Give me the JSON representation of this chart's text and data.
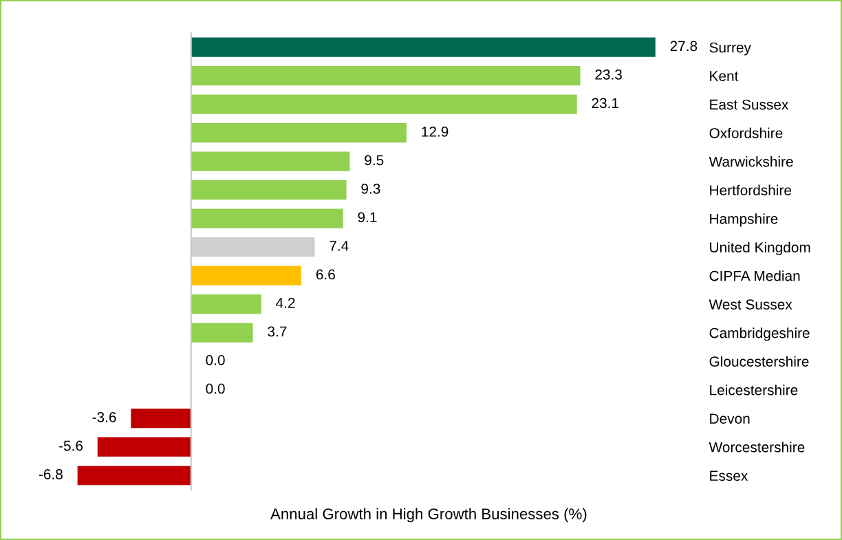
{
  "chart_data": {
    "type": "bar",
    "orientation": "horizontal",
    "xlabel": "Annual Growth in High Growth Businesses (%)",
    "categories": [
      "Surrey",
      "Kent",
      "East Sussex",
      "Oxfordshire",
      "Warwickshire",
      "Hertfordshire",
      "Hampshire",
      "United Kingdom",
      "CIPFA Median",
      "West Sussex",
      "Cambridgeshire",
      "Gloucestershire",
      "Leicestershire",
      "Devon",
      "Worcestershire",
      "Essex"
    ],
    "values": [
      27.8,
      23.3,
      23.1,
      12.9,
      9.5,
      9.3,
      9.1,
      7.4,
      6.6,
      4.2,
      3.7,
      0.0,
      0.0,
      -3.6,
      -5.6,
      -6.8
    ],
    "colors": [
      "#006850",
      "#92d050",
      "#92d050",
      "#92d050",
      "#92d050",
      "#92d050",
      "#92d050",
      "#d0cece",
      "#ffc000",
      "#92d050",
      "#92d050",
      "#92d050",
      "#92d050",
      "#c00000",
      "#c00000",
      "#c00000"
    ],
    "value_labels": [
      "27.8",
      "23.3",
      "23.1",
      "12.9",
      "9.5",
      "9.3",
      "9.1",
      "7.4",
      "6.6",
      "4.2",
      "3.7",
      "0.0",
      "0.0",
      "-3.6",
      "-5.6",
      "-6.8"
    ],
    "grid": false,
    "legend": false
  }
}
